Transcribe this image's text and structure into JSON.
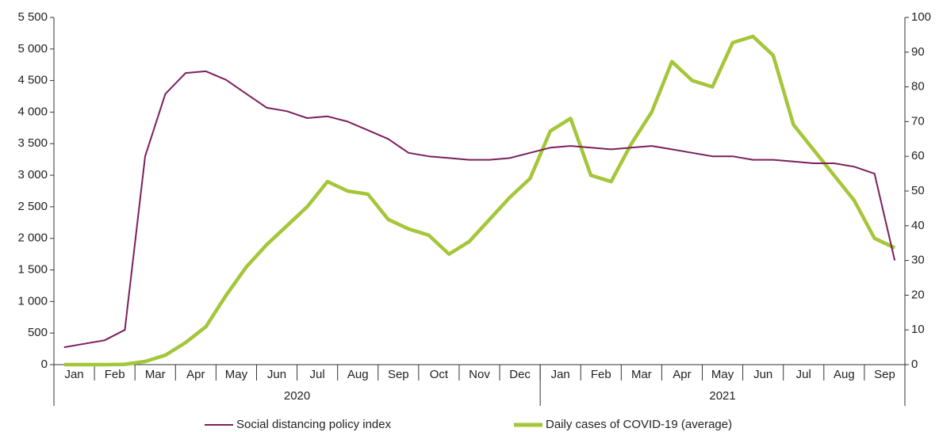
{
  "chart_data": {
    "type": "line",
    "categories": [
      "Jan",
      null,
      "Feb",
      null,
      "Mar",
      null,
      "Apr",
      null,
      "May",
      null,
      "Jun",
      null,
      "Jul",
      null,
      "Aug",
      null,
      "Sep",
      null,
      "Oct",
      null,
      "Nov",
      null,
      "Dec",
      null,
      "Jan",
      null,
      "Feb",
      null,
      "Mar",
      null,
      "Apr",
      null,
      "May",
      null,
      "Jun",
      null,
      "Jul",
      null,
      "Aug",
      null,
      "Sep",
      null
    ],
    "groups": [
      {
        "name": "2020",
        "span": 24
      },
      {
        "name": "2021",
        "span": 18
      }
    ],
    "series": [
      {
        "name": "Social distancing policy index",
        "color": "#7b1f5e",
        "axis": "y2",
        "values": [
          5,
          6,
          7,
          10,
          60,
          78,
          84,
          84.5,
          82,
          78,
          74,
          73,
          71,
          71.5,
          70,
          67.5,
          65,
          61,
          60,
          59.5,
          59,
          59,
          59.5,
          61,
          62.5,
          63,
          62.5,
          62,
          62.5,
          63,
          62,
          61,
          60,
          60,
          59,
          59,
          58.5,
          58,
          58,
          57,
          55,
          30
        ]
      },
      {
        "name": "Daily cases of COVID-19 (average)",
        "color": "#a4c639",
        "values": [
          0,
          0,
          0,
          5,
          50,
          150,
          350,
          600,
          1100,
          1550,
          1900,
          2200,
          2500,
          2900,
          2750,
          2700,
          2300,
          2150,
          2050,
          1750,
          1950,
          2300,
          2650,
          2950,
          3700,
          3900,
          3000,
          2900,
          3500,
          4000,
          4800,
          4500,
          4400,
          5100,
          5200,
          4900,
          3800,
          3400,
          3000,
          2600,
          2000,
          1850
        ]
      }
    ],
    "ylim": [
      0,
      5500
    ],
    "yticks": [
      0,
      500,
      {
        "value": 1000,
        "label": "1 000"
      },
      {
        "value": 1500,
        "label": "1 500"
      },
      {
        "value": 2000,
        "label": "2 000"
      },
      {
        "value": 2500,
        "label": "2 500"
      },
      {
        "value": 3000,
        "label": "3 000"
      },
      {
        "value": 3500,
        "label": "3 500"
      },
      {
        "value": 4000,
        "label": "4 000"
      },
      {
        "value": 4500,
        "label": "4 500"
      },
      {
        "value": 5000,
        "label": "5 000"
      },
      {
        "value": 5500,
        "label": "5 500"
      }
    ],
    "y2lim": [
      0,
      100
    ],
    "y2ticks": [
      0,
      10,
      20,
      30,
      40,
      50,
      60,
      70,
      80,
      90,
      100
    ],
    "grid": false
  }
}
